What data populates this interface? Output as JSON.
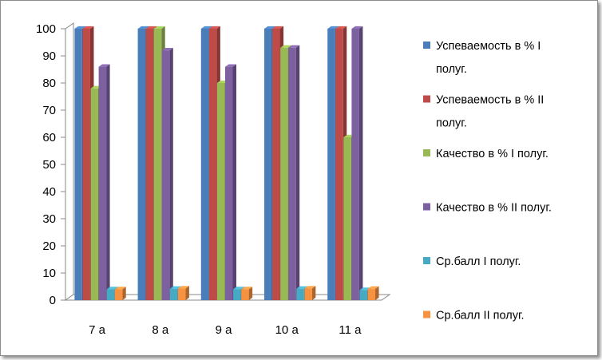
{
  "chart_data": {
    "type": "bar",
    "categories": [
      "7 а",
      "8 а",
      "9 а",
      "10 а",
      "11 а"
    ],
    "series": [
      {
        "name": "Успеваемость в % I полуг.",
        "legend_lines": [
          "Успеваемость в % I",
          "полуг."
        ],
        "color": "#4a7ebb",
        "values": [
          100,
          100,
          100,
          100,
          100
        ]
      },
      {
        "name": "Успеваемость в % II полуг.",
        "legend_lines": [
          "Успеваемость в % II",
          "полуг."
        ],
        "color": "#be4b48",
        "values": [
          100,
          100,
          100,
          100,
          100
        ]
      },
      {
        "name": "Качество в % I полуг.",
        "legend_lines": [
          "Качество в % I полуг."
        ],
        "color": "#98b954",
        "values": [
          78,
          100,
          80,
          93,
          60
        ]
      },
      {
        "name": "Качество в % II полуг.",
        "legend_lines": [
          "Качество в % II полуг."
        ],
        "color": "#7d60a0",
        "values": [
          86,
          92,
          86,
          93,
          100
        ]
      },
      {
        "name": "Ср.балл I полуг.",
        "legend_lines": [
          "Ср.балл I полуг."
        ],
        "color": "#46aac5",
        "values": [
          4,
          4.2,
          4,
          4.2,
          3.7
        ]
      },
      {
        "name": "Ср.балл II полуг.",
        "legend_lines": [
          "Ср.балл II полуг."
        ],
        "color": "#f69240",
        "values": [
          4,
          4.3,
          4,
          4.3,
          4.2
        ]
      }
    ],
    "ylim": [
      0,
      100
    ],
    "yticks": [
      "0",
      "10",
      "20",
      "30",
      "40",
      "50",
      "60",
      "70",
      "80",
      "90",
      "100"
    ],
    "grid": false,
    "legend_position": "right",
    "style": "3d-clustered-column"
  }
}
